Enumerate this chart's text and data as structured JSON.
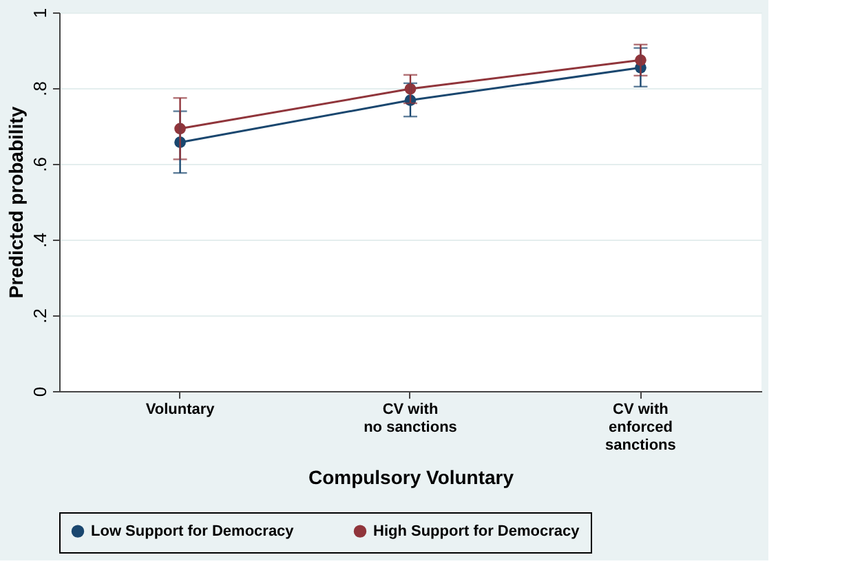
{
  "chart_data": {
    "type": "line",
    "xlabel": "Compulsory Voluntary",
    "ylabel": "Predicted probability",
    "categories": [
      "Voluntary",
      "CV with\nno sanctions",
      "CV with\nenforced\nsanctions"
    ],
    "series": [
      {
        "name": "Low Support for Democracy",
        "color": "#1a476f",
        "values": [
          0.657,
          0.768,
          0.854
        ],
        "errors": [
          [
            0.576,
            0.739
          ],
          [
            0.725,
            0.813
          ],
          [
            0.804,
            0.906
          ]
        ]
      },
      {
        "name": "High Support for Democracy",
        "color": "#90353b",
        "values": [
          0.693,
          0.798,
          0.874
        ],
        "errors": [
          [
            0.612,
            0.774
          ],
          [
            0.76,
            0.835
          ],
          [
            0.833,
            0.915
          ]
        ]
      }
    ],
    "ylim": [
      0,
      1
    ],
    "yticks": [
      {
        "value": 0,
        "label": "0"
      },
      {
        "value": 0.2,
        "label": ".2"
      },
      {
        "value": 0.4,
        "label": ".4"
      },
      {
        "value": 0.6,
        "label": ".6"
      },
      {
        "value": 0.8,
        "label": ".8"
      },
      {
        "value": 1,
        "label": "1"
      }
    ],
    "grid": "y",
    "legend": "bottom",
    "marker": "circle",
    "line_style": "solid"
  }
}
